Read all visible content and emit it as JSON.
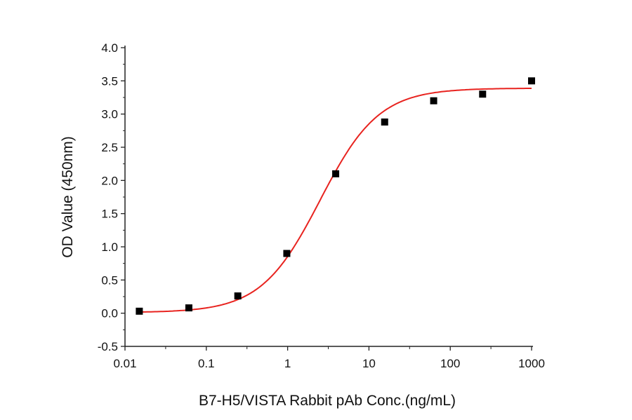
{
  "chart_data": {
    "type": "scatter",
    "title": "",
    "xlabel": "B7-H5/VISTA Rabbit pAb Conc.(ng/mL)",
    "ylabel": "OD Value (450nm)",
    "xscale": "log",
    "xlim": [
      0.01,
      1000
    ],
    "ylim": [
      -0.5,
      4.0
    ],
    "xticks": [
      "0.01",
      "0.1",
      "1",
      "10",
      "100",
      "1000"
    ],
    "yticks": [
      "-0.5",
      "0.0",
      "0.5",
      "1.0",
      "1.5",
      "2.0",
      "2.5",
      "3.0",
      "3.5",
      "4.0"
    ],
    "grid": false,
    "series": [
      {
        "type": "scatter",
        "marker": "square",
        "color": "#000000",
        "x": [
          0.015,
          0.061,
          0.244,
          0.977,
          3.9,
          15.6,
          62.5,
          250,
          1000
        ],
        "y": [
          0.03,
          0.08,
          0.26,
          0.9,
          2.1,
          2.88,
          3.2,
          3.3,
          3.5
        ]
      },
      {
        "type": "line",
        "fit": "4-parameter logistic",
        "color": "#e8231f",
        "params": {
          "bottom": 0.01,
          "top": 3.39,
          "ec50": 2.5,
          "hill": 1.2
        },
        "x_range": [
          0.015,
          1000
        ]
      }
    ]
  }
}
